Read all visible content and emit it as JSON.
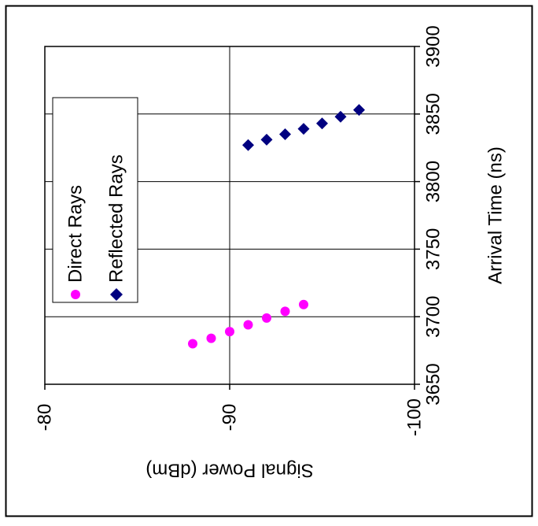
{
  "chart_data": {
    "type": "scatter",
    "orientation": "rotated-90-clockwise",
    "xlabel": "Arrival Time (ns)",
    "ylabel": "Signal Power (dBm)",
    "xlim": [
      3650,
      3900
    ],
    "ylim": [
      -80,
      -100
    ],
    "x_ticks": [
      "3650",
      "3700",
      "3750",
      "3800",
      "3850",
      "3900"
    ],
    "y_ticks": [
      "-80",
      "-90",
      "-100"
    ],
    "grid": true,
    "legend_position": "left",
    "series": [
      {
        "name": "Direct Rays",
        "marker": "circle",
        "color": "#ff00ff",
        "points": [
          {
            "x": 3680,
            "y": -88.0
          },
          {
            "x": 3684,
            "y": -89.0
          },
          {
            "x": 3689,
            "y": -90.0
          },
          {
            "x": 3694,
            "y": -91.0
          },
          {
            "x": 3699,
            "y": -92.0
          },
          {
            "x": 3704,
            "y": -93.0
          },
          {
            "x": 3709,
            "y": -94.0
          }
        ]
      },
      {
        "name": "Reflected Rays",
        "marker": "diamond",
        "color": "#000080",
        "points": [
          {
            "x": 3827,
            "y": -91.0
          },
          {
            "x": 3831,
            "y": -92.0
          },
          {
            "x": 3835,
            "y": -93.0
          },
          {
            "x": 3839,
            "y": -94.0
          },
          {
            "x": 3843,
            "y": -95.0
          },
          {
            "x": 3848,
            "y": -96.0
          },
          {
            "x": 3853,
            "y": -97.0
          }
        ]
      }
    ]
  }
}
